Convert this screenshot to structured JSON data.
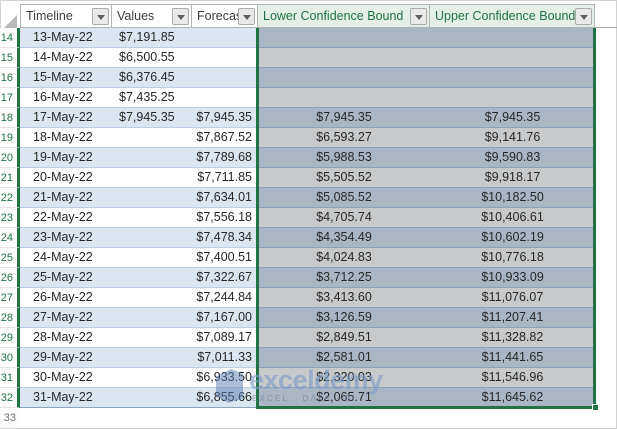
{
  "app": {
    "description": "Excel worksheet with a filtered forecast table; Lower/Upper Confidence Bound columns are selected"
  },
  "sheet": {
    "columns": [
      {
        "label": "Timeline",
        "style": "plain"
      },
      {
        "label": "Values",
        "style": "plain"
      },
      {
        "label": "Forecast",
        "style": "plain"
      },
      {
        "label": "Lower Confidence Bound",
        "style": "selected-green"
      },
      {
        "label": "Upper Confidence Bound",
        "style": "selected-green"
      }
    ],
    "rows": [
      {
        "num": "14",
        "timeline": "13-May-22",
        "values": "$7,191.85",
        "forecast": "",
        "lower": "",
        "upper": ""
      },
      {
        "num": "15",
        "timeline": "14-May-22",
        "values": "$6,500.55",
        "forecast": "",
        "lower": "",
        "upper": ""
      },
      {
        "num": "16",
        "timeline": "15-May-22",
        "values": "$6,376.45",
        "forecast": "",
        "lower": "",
        "upper": ""
      },
      {
        "num": "17",
        "timeline": "16-May-22",
        "values": "$7,435.25",
        "forecast": "",
        "lower": "",
        "upper": ""
      },
      {
        "num": "18",
        "timeline": "17-May-22",
        "values": "$7,945.35",
        "forecast": "$7,945.35",
        "lower": "$7,945.35",
        "upper": "$7,945.35"
      },
      {
        "num": "19",
        "timeline": "18-May-22",
        "values": "",
        "forecast": "$7,867.52",
        "lower": "$6,593.27",
        "upper": "$9,141.76"
      },
      {
        "num": "20",
        "timeline": "19-May-22",
        "values": "",
        "forecast": "$7,789.68",
        "lower": "$5,988.53",
        "upper": "$9,590.83"
      },
      {
        "num": "21",
        "timeline": "20-May-22",
        "values": "",
        "forecast": "$7,711.85",
        "lower": "$5,505.52",
        "upper": "$9,918.17"
      },
      {
        "num": "22",
        "timeline": "21-May-22",
        "values": "",
        "forecast": "$7,634.01",
        "lower": "$5,085.52",
        "upper": "$10,182.50"
      },
      {
        "num": "23",
        "timeline": "22-May-22",
        "values": "",
        "forecast": "$7,556.18",
        "lower": "$4,705.74",
        "upper": "$10,406.61"
      },
      {
        "num": "24",
        "timeline": "23-May-22",
        "values": "",
        "forecast": "$7,478.34",
        "lower": "$4,354.49",
        "upper": "$10,602.19"
      },
      {
        "num": "25",
        "timeline": "24-May-22",
        "values": "",
        "forecast": "$7,400.51",
        "lower": "$4,024.83",
        "upper": "$10,776.18"
      },
      {
        "num": "26",
        "timeline": "25-May-22",
        "values": "",
        "forecast": "$7,322.67",
        "lower": "$3,712.25",
        "upper": "$10,933.09"
      },
      {
        "num": "27",
        "timeline": "26-May-22",
        "values": "",
        "forecast": "$7,244.84",
        "lower": "$3,413.60",
        "upper": "$11,076.07"
      },
      {
        "num": "28",
        "timeline": "27-May-22",
        "values": "",
        "forecast": "$7,167.00",
        "lower": "$3,126.59",
        "upper": "$11,207.41"
      },
      {
        "num": "29",
        "timeline": "28-May-22",
        "values": "",
        "forecast": "$7,089.17",
        "lower": "$2,849.51",
        "upper": "$11,328.82"
      },
      {
        "num": "30",
        "timeline": "29-May-22",
        "values": "",
        "forecast": "$7,011.33",
        "lower": "$2,581.01",
        "upper": "$11,441.65"
      },
      {
        "num": "31",
        "timeline": "30-May-22",
        "values": "",
        "forecast": "$6,933.50",
        "lower": "$2,320.03",
        "upper": "$11,546.96"
      },
      {
        "num": "32",
        "timeline": "31-May-22",
        "values": "",
        "forecast": "$6,855.66",
        "lower": "$2,065.71",
        "upper": "$11,645.62"
      }
    ],
    "row_after": {
      "num": "33"
    }
  },
  "icons": {
    "filter_dropdown": "chevron-down-icon",
    "select_all_corner": "corner-triangle-icon",
    "fill_handle": "fill-handle-square"
  },
  "colors": {
    "excel_green": "#217346",
    "header_green_bg": "#e3efe7",
    "header_green_text": "#1e7145",
    "band_blue": "#dce6f1",
    "selected_band_dark": "#abb6c5",
    "selected_band_light": "#c7c9cb",
    "row_line_blue": "#bccee5",
    "selected_row_line": "#8ba0bb"
  },
  "watermark": {
    "brand": "exceldemy",
    "tagline": "EXCEL · DATA · BI"
  }
}
